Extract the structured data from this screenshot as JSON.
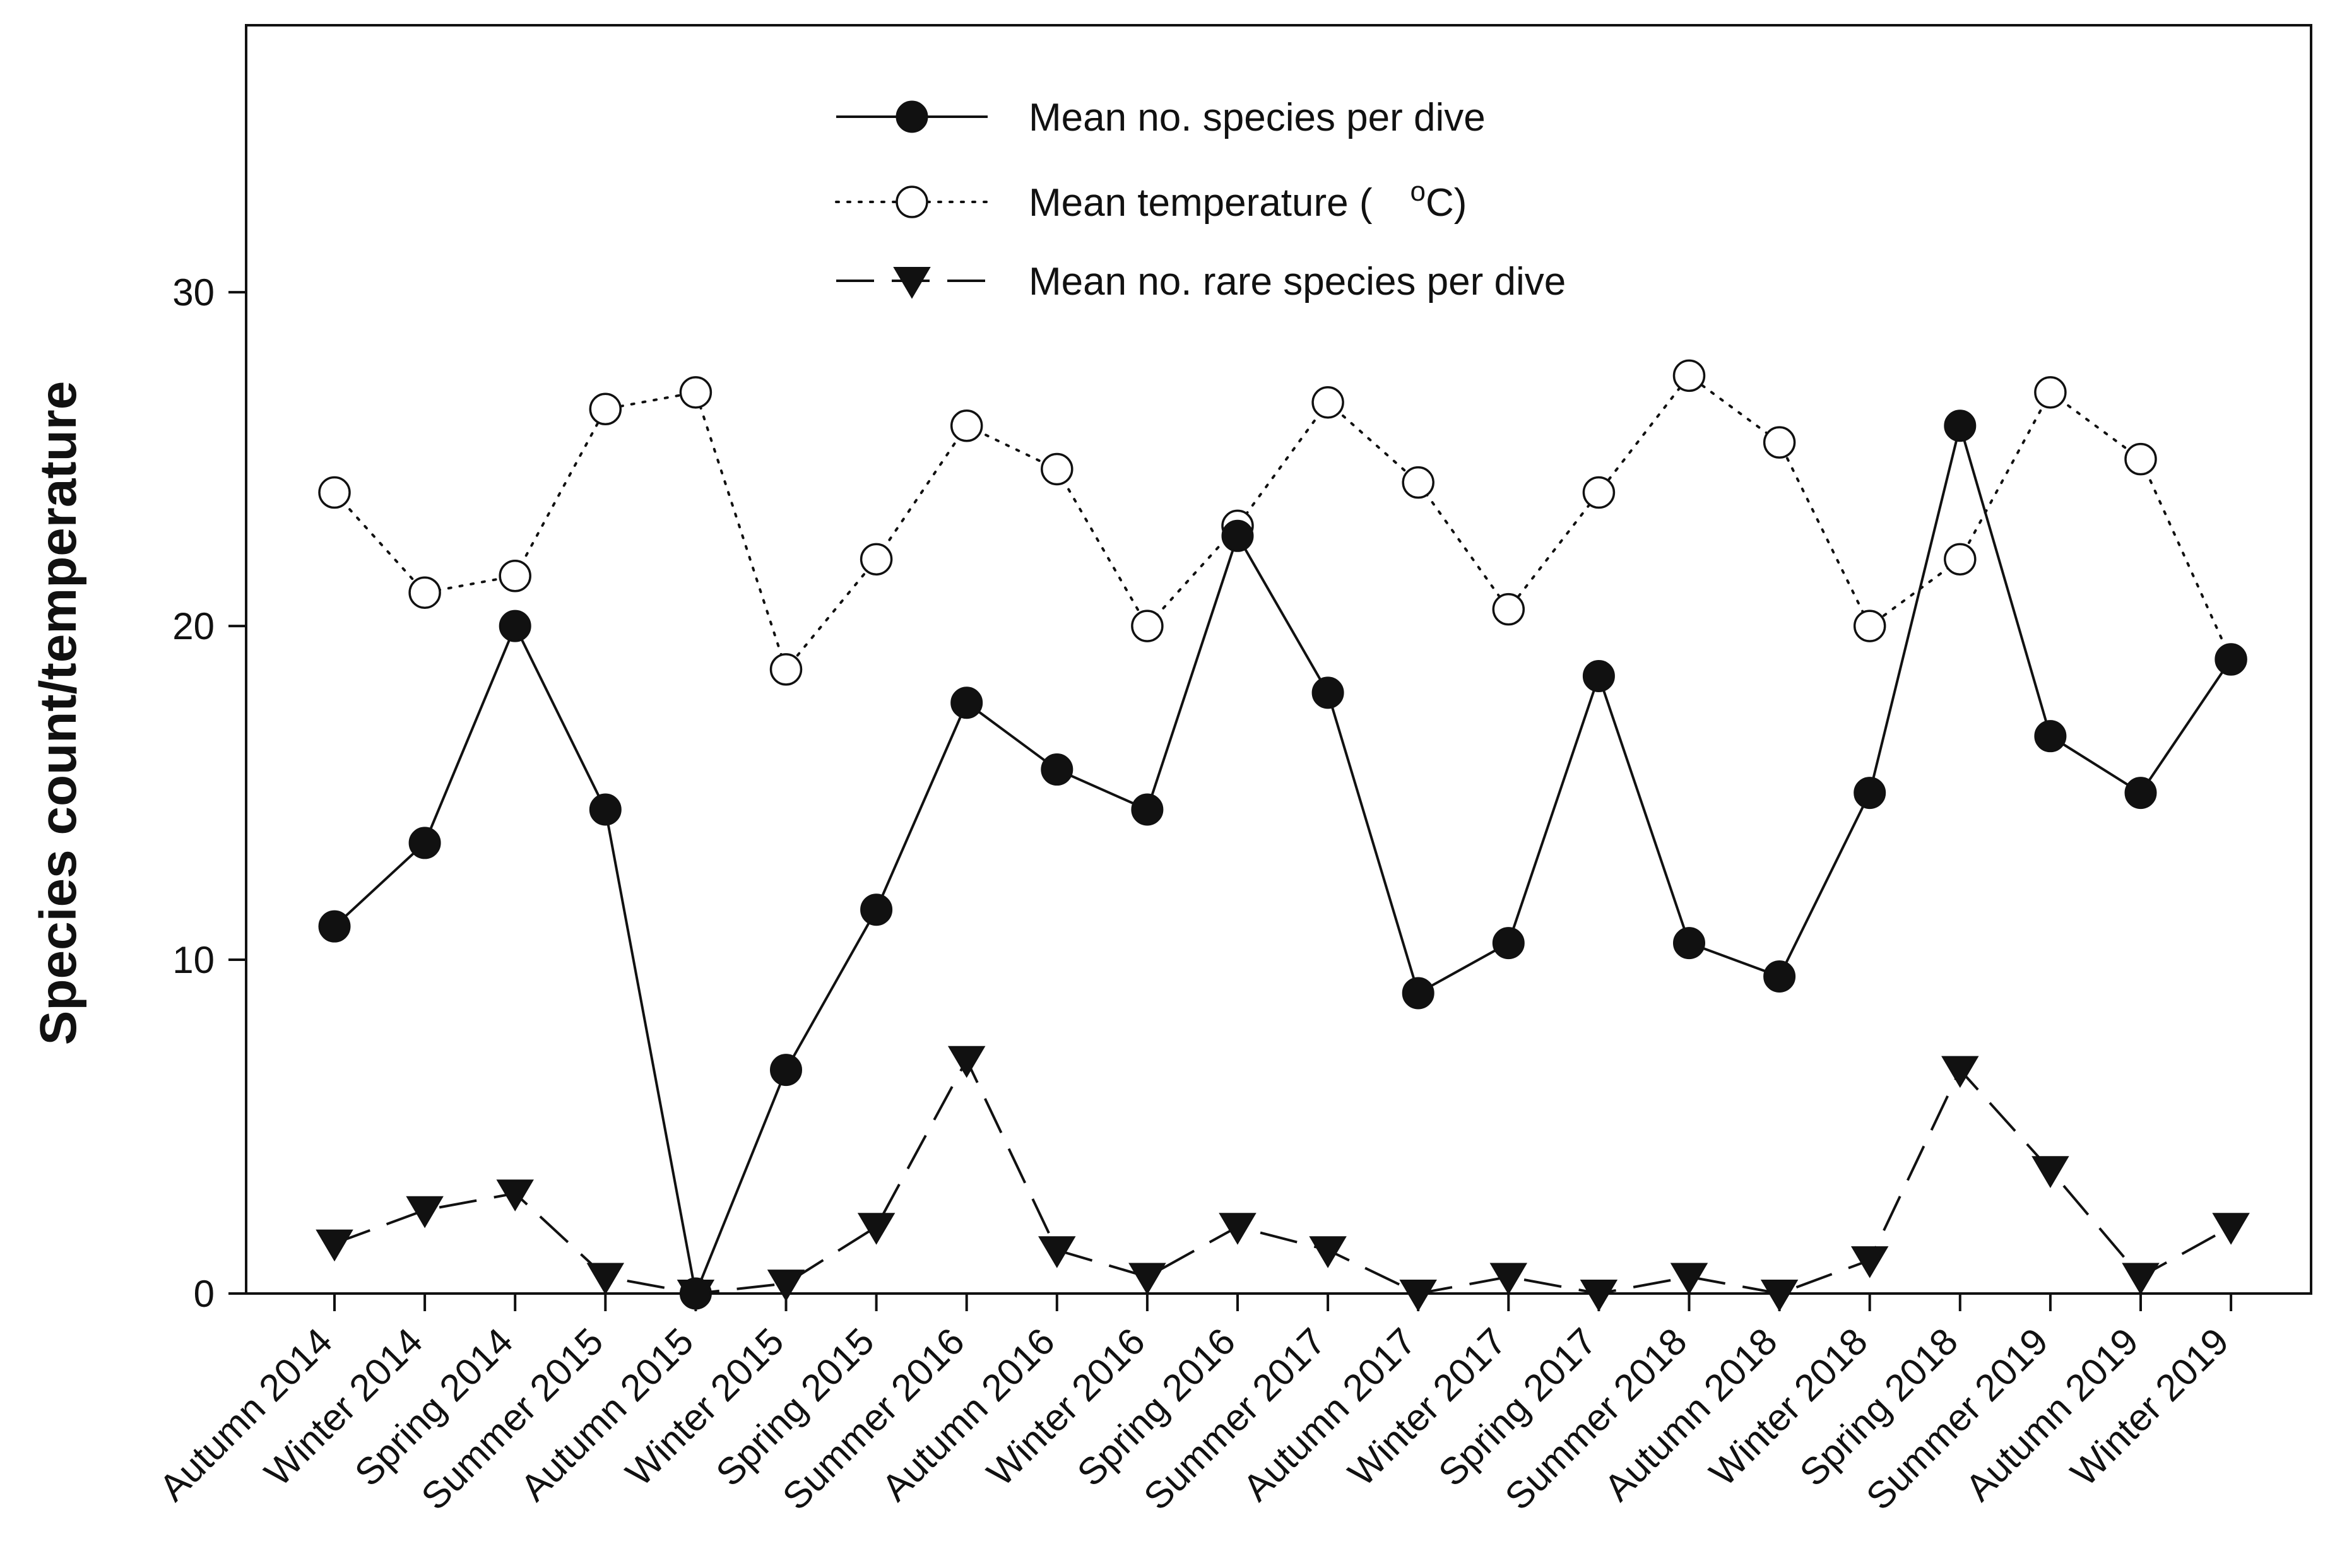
{
  "chart_data": {
    "type": "line",
    "title": "",
    "xlabel": "",
    "ylabel": "Species count/temperature",
    "ylim": [
      0,
      38
    ],
    "yticks": [
      0,
      10,
      20,
      30
    ],
    "grid": false,
    "legend_position": "top-center",
    "categories": [
      "Autumn 2014",
      "Winter 2014",
      "Spring 2014",
      "Summer 2015",
      "Autumn 2015",
      "Winter 2015",
      "Spring 2015",
      "Summer 2016",
      "Autumn 2016",
      "Winter 2016",
      "Spring 2016",
      "Summer 2017",
      "Autumn 2017",
      "Winter 2017",
      "Spring 2017",
      "Summer 2018",
      "Autumn 2018",
      "Winter 2018",
      "Spring 2018",
      "Summer 2019",
      "Autumn 2019",
      "Winter 2019"
    ],
    "series": [
      {
        "name": "Mean no. species per dive",
        "marker": "filled-circle",
        "line": "solid",
        "values": [
          11,
          13.5,
          20,
          14.5,
          0,
          6.7,
          11.5,
          17.7,
          15.7,
          14.5,
          22.7,
          18,
          9,
          10.5,
          18.5,
          10.5,
          9.5,
          15,
          26,
          16.7,
          15,
          19
        ]
      },
      {
        "name": "Mean temperature (",
        "name_unit_sup": "o",
        "name_unit_tail": "C)",
        "marker": "open-circle",
        "line": "dotted",
        "values": [
          24,
          21,
          21.5,
          26.5,
          27,
          18.7,
          22,
          26,
          24.7,
          20,
          23,
          26.7,
          24.3,
          20.5,
          24,
          27.5,
          25.5,
          20,
          22,
          27,
          25,
          19
        ]
      },
      {
        "name": "Mean no. rare species per dive",
        "marker": "filled-triangle-down",
        "line": "dashed",
        "values": [
          1.5,
          2.5,
          3,
          0.5,
          0,
          0.3,
          2,
          7,
          1.3,
          0.5,
          2,
          1.3,
          0,
          0.5,
          0,
          0.5,
          0,
          1,
          6.7,
          3.7,
          0.5,
          2
        ]
      }
    ]
  },
  "colors": {
    "ink": "#111111",
    "background": "#ffffff"
  }
}
